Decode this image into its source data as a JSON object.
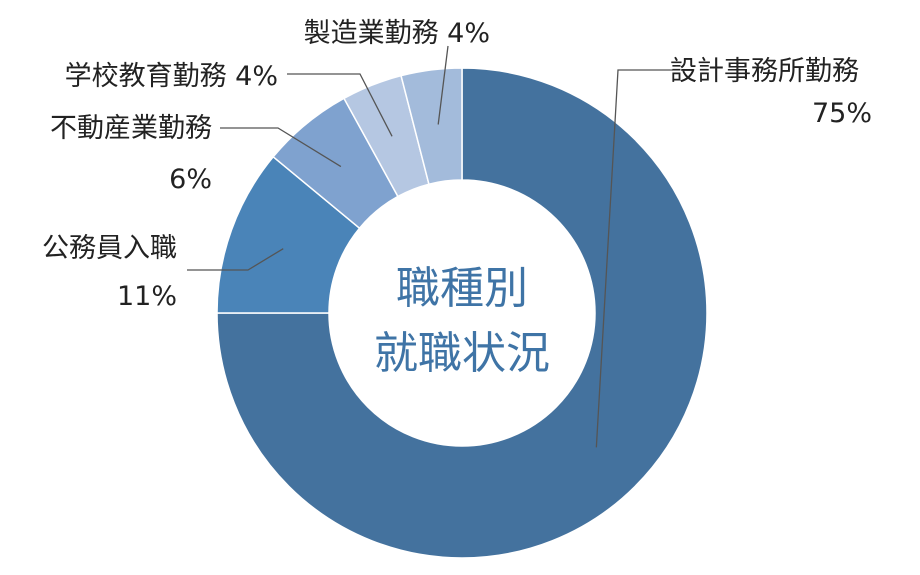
{
  "chart_data": {
    "type": "pie",
    "donut": true,
    "center_title": [
      "職種別",
      "就職状況"
    ],
    "center_color": "#3f74a6",
    "unit": "%",
    "slices": [
      {
        "name": "設計事務所勤務",
        "value": 75,
        "color": "#44729e"
      },
      {
        "name": "公務員入職",
        "value": 11,
        "color": "#4a84b8"
      },
      {
        "name": "不動産業勤務",
        "value": 6,
        "color": "#7fa2cf"
      },
      {
        "name": "学校教育勤務",
        "value": 4,
        "color": "#b5c7e2"
      },
      {
        "name": "製造業勤務",
        "value": 4,
        "color": "#a3bbdb"
      }
    ],
    "legend": "none"
  }
}
